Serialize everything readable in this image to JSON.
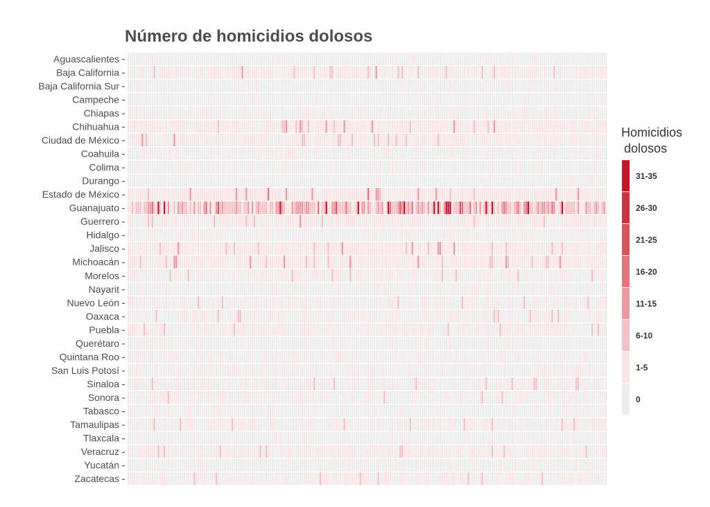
{
  "chart_data": {
    "type": "heatmap",
    "title": "Número de homicidios dolosos",
    "xlabel": "",
    "ylabel": "",
    "rows": [
      "Aguascalientes",
      "Baja California",
      "Baja California Sur",
      "Campeche",
      "Chiapas",
      "Chihuahua",
      "Ciudad de México",
      "Coahuila",
      "Colima",
      "Durango",
      "Estado de México",
      "Guanajuato",
      "Guerrero",
      "Hidalgo",
      "Jalisco",
      "Michoacán",
      "Morelos",
      "Nayarit",
      "Nuevo León",
      "Oaxaca",
      "Puebla",
      "Querétaro",
      "Quintana Roo",
      "San Luis Potosí",
      "Sinaloa",
      "Sonora",
      "Tabasco",
      "Tamaulipas",
      "Tlaxcala",
      "Veracruz",
      "Yucatán",
      "Zacatecas"
    ],
    "n_columns": 240,
    "row_intensity": [
      0.05,
      0.9,
      0.08,
      0.05,
      0.2,
      1.4,
      0.9,
      0.2,
      0.2,
      0.08,
      1.8,
      3.5,
      0.7,
      0.2,
      1.4,
      1.3,
      0.5,
      0.1,
      0.45,
      0.4,
      0.7,
      0.1,
      0.3,
      0.25,
      0.4,
      0.4,
      0.15,
      0.5,
      0.12,
      0.7,
      0.1,
      0.6
    ],
    "legend": {
      "title_line1": "Homicidios",
      "title_line2": "dolosos",
      "categories": [
        "0",
        "1-5",
        "6-10",
        "11-15",
        "16-20",
        "21-25",
        "26-30",
        "31-35"
      ],
      "colors": [
        "#ededed",
        "#fbe4e6",
        "#f3c1c6",
        "#eb9aa3",
        "#e27480",
        "#d9535f",
        "#cf3343",
        "#c5162a"
      ]
    },
    "grid": false,
    "legend_position": "right"
  }
}
